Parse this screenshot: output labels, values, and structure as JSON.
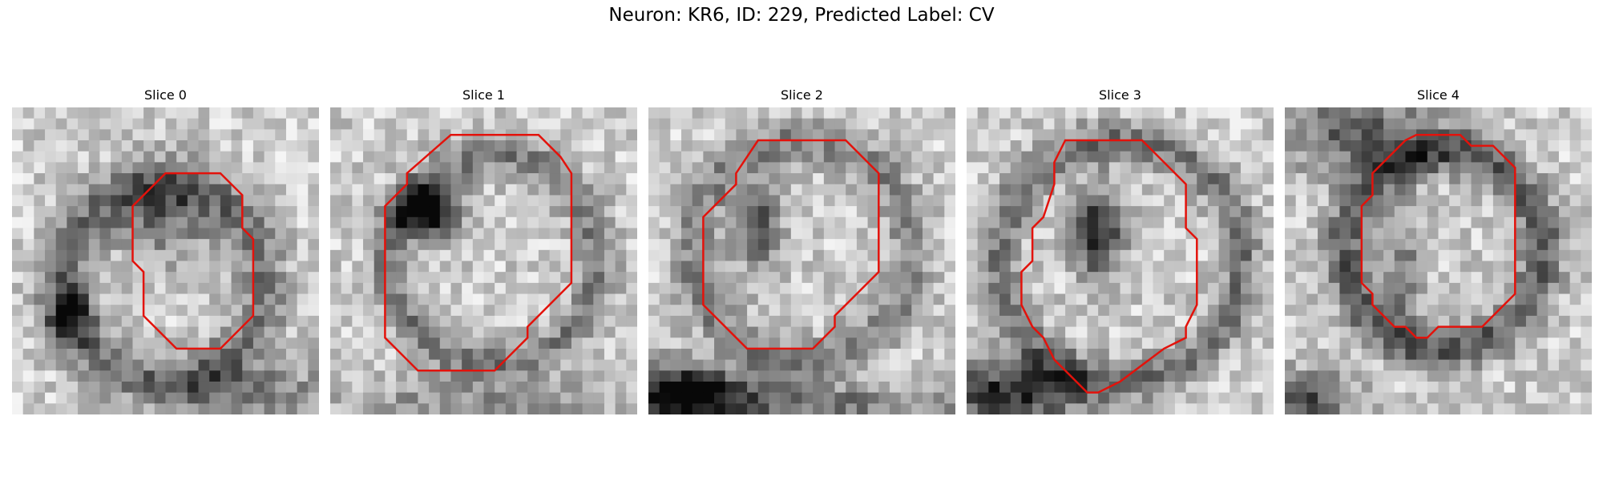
{
  "figure": {
    "title": "Neuron: KR6, ID: 229, Predicted Label: CV",
    "contour_color": "#e3120b",
    "panels": [
      {
        "title": "Slice 0"
      },
      {
        "title": "Slice 1"
      },
      {
        "title": "Slice 2"
      },
      {
        "title": "Slice 3"
      },
      {
        "title": "Slice 4"
      }
    ]
  }
}
